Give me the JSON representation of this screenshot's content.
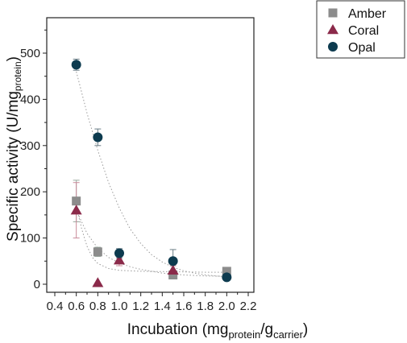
{
  "chart_data": {
    "type": "scatter",
    "xlabel": {
      "main": "Incubation (mg",
      "sub1": "protein",
      "mid": "/g",
      "sub2": "carrier",
      "end": ")"
    },
    "ylabel": {
      "main": "Specific activity (U/mg",
      "sub": "protein",
      "end": ")"
    },
    "xlim": [
      0.4,
      2.3
    ],
    "ylim": [
      -15,
      575
    ],
    "xticks": [
      "0.4",
      "0.6",
      "0.8",
      "1.0",
      "1.2",
      "1.4",
      "1.6",
      "1.8",
      "2.0",
      "2.2"
    ],
    "yticks": [
      "0",
      "100",
      "200",
      "300",
      "400",
      "500"
    ],
    "legend_position": "top-right",
    "series": [
      {
        "name": "Amber",
        "marker": "square",
        "color": "#8c8c8c",
        "errcolor": "#9aaba0",
        "points": [
          {
            "x": 0.6,
            "y": 180,
            "err": 45
          },
          {
            "x": 0.8,
            "y": 70,
            "err": 10
          },
          {
            "x": 1.5,
            "y": 20,
            "err": 5
          },
          {
            "x": 2.0,
            "y": 28,
            "err": 5
          }
        ],
        "fit": [
          [
            0.6,
            170
          ],
          [
            0.65,
            120
          ],
          [
            0.7,
            82
          ],
          [
            0.75,
            58
          ],
          [
            0.8,
            45
          ],
          [
            0.9,
            34
          ],
          [
            1.0,
            30
          ],
          [
            1.2,
            28
          ],
          [
            1.5,
            27
          ],
          [
            1.8,
            26
          ],
          [
            2.0,
            26
          ]
        ]
      },
      {
        "name": "Coral",
        "marker": "triangle",
        "color": "#8b2a4a",
        "errcolor": "#c98a9a",
        "points": [
          {
            "x": 0.6,
            "y": 160,
            "err": 60
          },
          {
            "x": 0.8,
            "y": 3,
            "err": 0
          },
          {
            "x": 1.0,
            "y": 52,
            "err": 12
          },
          {
            "x": 1.5,
            "y": 30,
            "err": 10
          }
        ],
        "fit": [
          [
            0.6,
            160
          ],
          [
            0.7,
            110
          ],
          [
            0.8,
            78
          ],
          [
            0.9,
            58
          ],
          [
            1.0,
            46
          ],
          [
            1.1,
            38
          ],
          [
            1.2,
            32
          ],
          [
            1.4,
            24
          ],
          [
            1.6,
            20
          ],
          [
            1.8,
            18
          ],
          [
            2.0,
            17
          ]
        ]
      },
      {
        "name": "Opal",
        "marker": "circle",
        "color": "#0d3b4f",
        "errcolor": "#6a7d86",
        "points": [
          {
            "x": 0.6,
            "y": 475,
            "err": 12
          },
          {
            "x": 0.8,
            "y": 318,
            "err": 18
          },
          {
            "x": 1.0,
            "y": 67,
            "err": 10
          },
          {
            "x": 1.5,
            "y": 50,
            "err": 25
          },
          {
            "x": 2.0,
            "y": 15,
            "err": 5
          }
        ],
        "fit": [
          [
            0.6,
            460
          ],
          [
            0.7,
            370
          ],
          [
            0.8,
            290
          ],
          [
            0.9,
            220
          ],
          [
            1.0,
            165
          ],
          [
            1.1,
            120
          ],
          [
            1.2,
            88
          ],
          [
            1.3,
            64
          ],
          [
            1.4,
            48
          ],
          [
            1.5,
            37
          ],
          [
            1.6,
            29
          ],
          [
            1.7,
            24
          ],
          [
            1.8,
            20
          ],
          [
            1.9,
            18
          ],
          [
            2.0,
            16
          ]
        ]
      }
    ]
  }
}
